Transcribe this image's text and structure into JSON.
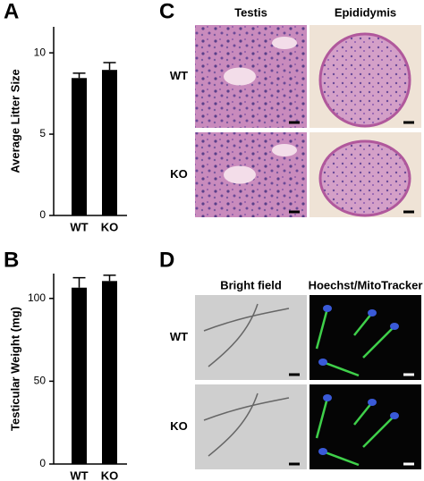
{
  "chart_data": [
    {
      "type": "bar",
      "label": "A",
      "ylabel": "Average Litter Size",
      "categories": [
        "WT",
        "KO"
      ],
      "values": [
        8.45,
        8.95
      ],
      "errors": [
        0.3,
        0.45
      ],
      "color": "#000000",
      "ylim": [
        0,
        11.6
      ],
      "yticks": [
        0,
        5,
        10
      ]
    },
    {
      "type": "bar",
      "label": "B",
      "ylabel": "Testicular Weight (mg)",
      "categories": [
        "WT",
        "KO"
      ],
      "values": [
        106.5,
        110.5
      ],
      "errors": [
        6,
        3.5
      ],
      "color": "#000000",
      "ylim": [
        0,
        115
      ],
      "yticks": [
        0,
        50,
        100
      ]
    }
  ],
  "image_panels": [
    {
      "label": "C",
      "columns": [
        "Testis",
        "Epididymis"
      ],
      "rows": [
        "WT",
        "KO"
      ]
    },
    {
      "label": "D",
      "columns": [
        "Bright field",
        "Hoechst/MitoTracker"
      ],
      "rows": [
        "WT",
        "KO"
      ]
    }
  ]
}
